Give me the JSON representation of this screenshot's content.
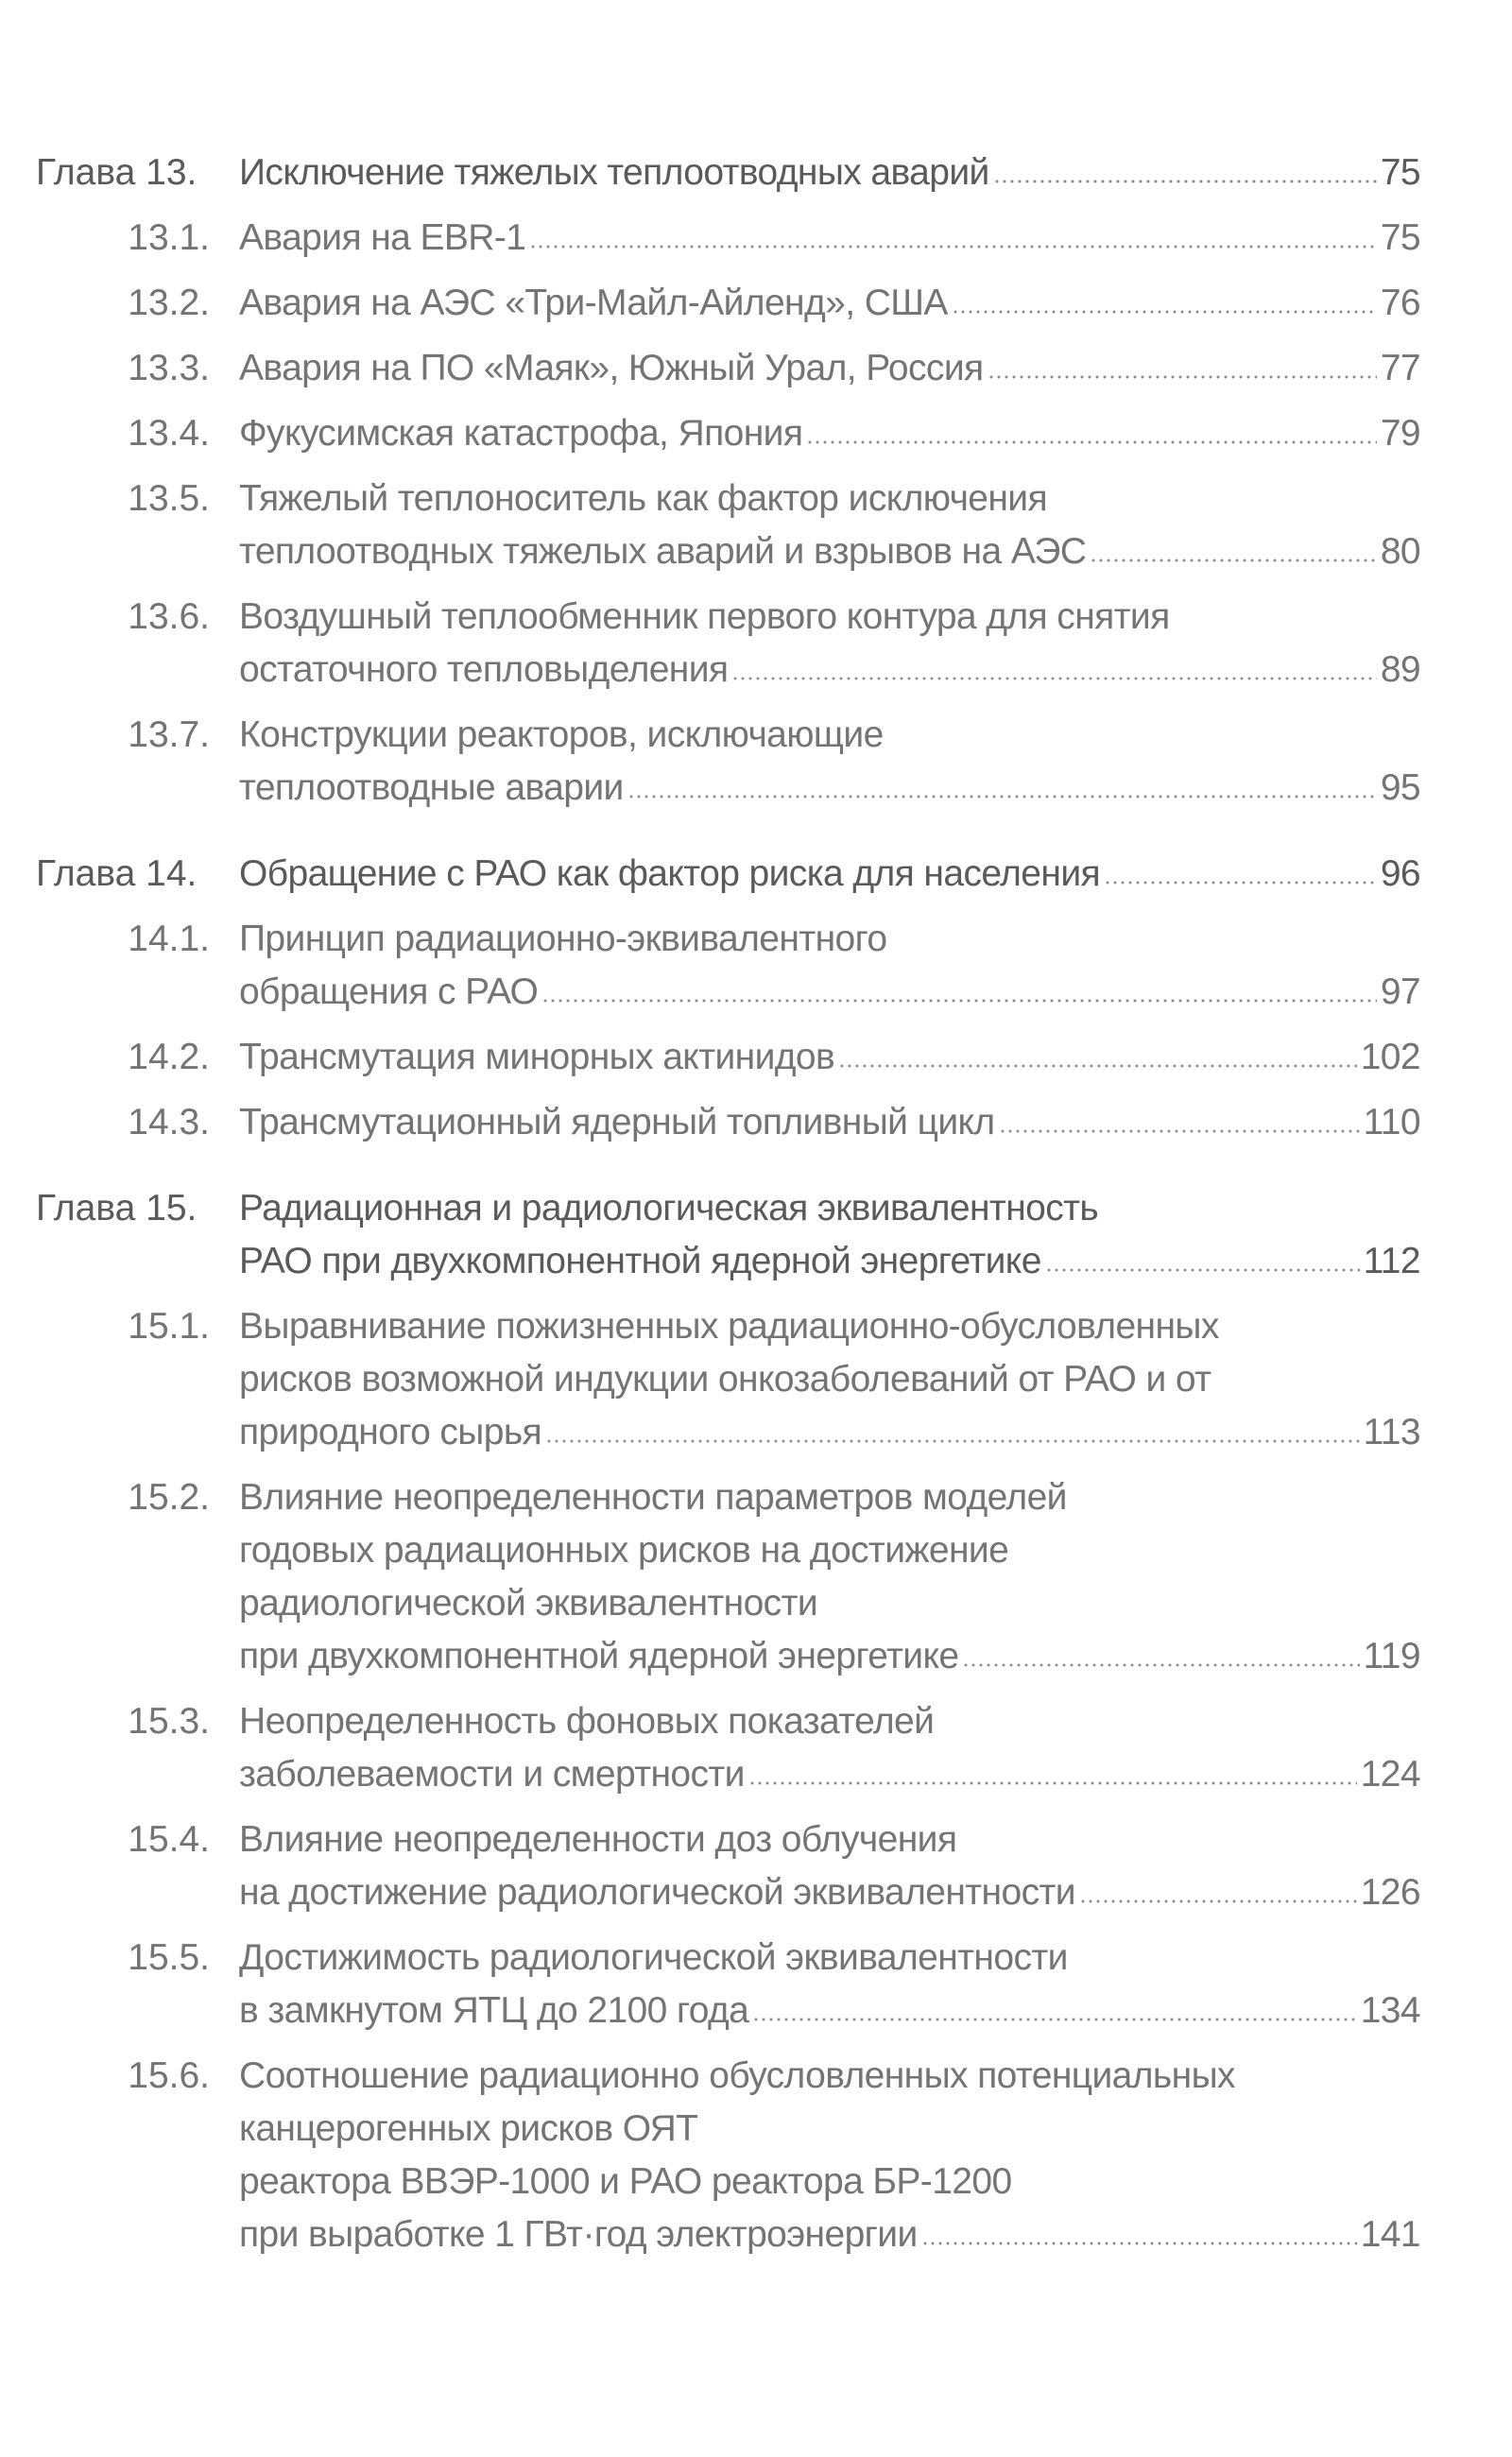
{
  "toc": [
    {
      "type": "chapter",
      "number": "Глава 13.",
      "lines": [
        "Исключение тяжелых теплоотводных аварий"
      ],
      "page": "75"
    },
    {
      "type": "sub",
      "number": "13.1.",
      "lines": [
        "Авария на EBR-1"
      ],
      "page": "75"
    },
    {
      "type": "sub",
      "number": "13.2.",
      "lines": [
        "Авария на АЭС «Три-Майл-Айленд», США"
      ],
      "page": "76"
    },
    {
      "type": "sub",
      "number": "13.3.",
      "lines": [
        "Авария на ПО «Маяк», Южный Урал, Россия"
      ],
      "page": "77"
    },
    {
      "type": "sub",
      "number": "13.4.",
      "lines": [
        "Фукусимская катастрофа, Япония"
      ],
      "page": "79"
    },
    {
      "type": "sub",
      "number": "13.5.",
      "lines": [
        "Тяжелый теплоноситель как фактор исключения",
        "теплоотводных тяжелых аварий и взрывов на АЭС"
      ],
      "page": "80"
    },
    {
      "type": "sub",
      "number": "13.6.",
      "lines": [
        "Воздушный теплообменник первого контура для снятия",
        "остаточного тепловыделения"
      ],
      "page": "89"
    },
    {
      "type": "sub",
      "number": "13.7.",
      "lines": [
        "Конструкции реакторов, исключающие",
        "теплоотводные аварии"
      ],
      "page": "95"
    },
    {
      "type": "chapter",
      "number": "Глава 14.",
      "lines": [
        "Обращение с РАО как фактор риска для населения"
      ],
      "page": "96"
    },
    {
      "type": "sub",
      "number": "14.1.",
      "lines": [
        "Принцип радиационно-эквивалентного",
        "обращения с РАО"
      ],
      "page": "97"
    },
    {
      "type": "sub",
      "number": "14.2.",
      "lines": [
        "Трансмутация минорных актинидов"
      ],
      "page": "102"
    },
    {
      "type": "sub",
      "number": "14.3.",
      "lines": [
        "Трансмутационный ядерный топливный цикл"
      ],
      "page": "110"
    },
    {
      "type": "chapter",
      "number": "Глава 15.",
      "lines": [
        "Радиационная и радиологическая эквивалентность",
        "РАО при двухкомпонентной ядерной энергетике"
      ],
      "page": "112"
    },
    {
      "type": "sub",
      "number": "15.1.",
      "lines": [
        "Выравнивание пожизненных радиационно-обусловленных",
        "рисков возможной индукции онкозаболеваний от РАО и от",
        "природного сырья"
      ],
      "page": "113"
    },
    {
      "type": "sub",
      "number": "15.2.",
      "lines": [
        "Влияние неопределенности параметров моделей",
        "годовых радиационных рисков на достижение",
        "радиологической эквивалентности",
        "при двухкомпонентной ядерной энергетике"
      ],
      "page": "119"
    },
    {
      "type": "sub",
      "number": "15.3.",
      "lines": [
        "Неопределенность фоновых показателей",
        "заболеваемости и смертности"
      ],
      "page": "124"
    },
    {
      "type": "sub",
      "number": "15.4.",
      "lines": [
        "Влияние неопределенности доз облучения",
        "на достижение радиологической эквивалентности"
      ],
      "page": "126"
    },
    {
      "type": "sub",
      "number": "15.5.",
      "lines": [
        "Достижимость радиологической эквивалентности",
        "в замкнутом ЯТЦ до 2100 года"
      ],
      "page": "134"
    },
    {
      "type": "sub",
      "number": "15.6.",
      "lines": [
        "Соотношение радиационно обусловленных потенциальных",
        "канцерогенных рисков ОЯТ",
        "реактора ВВЭР-1000 и РАО реактора БР-1200",
        "при выработке 1 ГВт·год электроэнергии"
      ],
      "page": "141"
    }
  ]
}
